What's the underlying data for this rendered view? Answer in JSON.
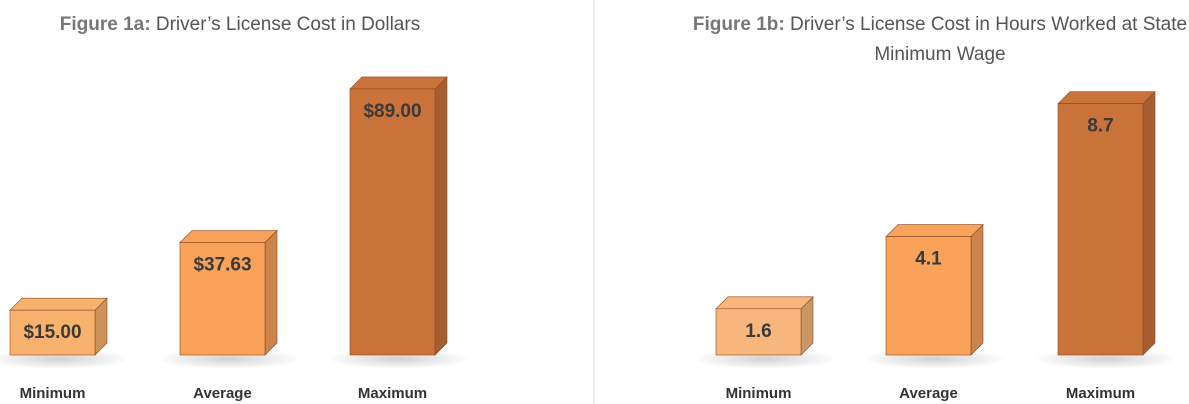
{
  "chart_data": [
    {
      "type": "bar",
      "title_label": "Figure 1a:",
      "title": "Driver’s License Cost in Dollars",
      "categories": [
        "Minimum",
        "Average",
        "Maximum"
      ],
      "values": [
        15,
        37.63,
        89
      ],
      "value_labels": [
        "$15.00",
        "$37.63",
        "$89.00"
      ],
      "colors": [
        "#f9b26e",
        "#f8a25a",
        "#c9733b"
      ],
      "ylim": [
        0,
        92
      ]
    },
    {
      "type": "bar",
      "title_label": "Figure 1b:",
      "title": "Driver’s License Cost in Hours Worked at State Minimum Wage",
      "categories": [
        "Minimum",
        "Average",
        "Maximum"
      ],
      "values": [
        1.6,
        4.1,
        8.7
      ],
      "colors": [
        "#f7b77c",
        "#f8a25a",
        "#c9733b"
      ],
      "ylim": [
        0,
        9
      ]
    }
  ]
}
